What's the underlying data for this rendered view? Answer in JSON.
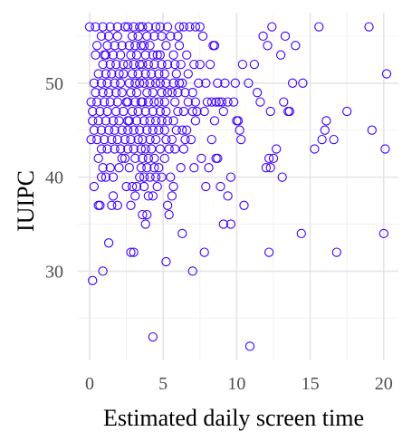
{
  "chart_data": {
    "type": "scatter",
    "xlabel": "Estimated daily screen time",
    "ylabel": "IUIPC",
    "xlim": [
      -0.8,
      21
    ],
    "ylim": [
      20.5,
      57.5
    ],
    "xticks": [
      0,
      5,
      10,
      15,
      20
    ],
    "yticks": [
      30,
      40,
      50
    ],
    "grid": true,
    "legend": "none",
    "point_color": "#3f00ff",
    "points": [
      [
        0.2,
        29
      ],
      [
        0.9,
        30
      ],
      [
        1.3,
        33
      ],
      [
        0.6,
        37
      ],
      [
        0.7,
        37
      ],
      [
        1.5,
        37
      ],
      [
        1.9,
        37
      ],
      [
        0.3,
        39
      ],
      [
        1.1,
        40
      ],
      [
        1.6,
        40
      ],
      [
        0.6,
        42
      ],
      [
        0.9,
        41
      ],
      [
        1.4,
        41
      ],
      [
        2.0,
        41
      ],
      [
        2.2,
        42
      ],
      [
        0.8,
        43
      ],
      [
        1.2,
        43
      ],
      [
        1.7,
        43
      ],
      [
        2.1,
        43
      ],
      [
        0.1,
        44
      ],
      [
        0.5,
        44
      ],
      [
        1.0,
        44
      ],
      [
        1.5,
        44
      ],
      [
        1.9,
        44
      ],
      [
        2.4,
        44
      ],
      [
        0.3,
        45
      ],
      [
        0.8,
        45
      ],
      [
        1.3,
        45
      ],
      [
        1.7,
        45
      ],
      [
        2.2,
        45
      ],
      [
        0.6,
        46
      ],
      [
        1.1,
        46
      ],
      [
        1.6,
        46
      ],
      [
        2.0,
        46
      ],
      [
        2.6,
        46
      ],
      [
        0.2,
        47
      ],
      [
        0.7,
        47
      ],
      [
        1.2,
        47
      ],
      [
        1.8,
        47
      ],
      [
        2.3,
        47
      ],
      [
        0.1,
        48
      ],
      [
        0.5,
        48
      ],
      [
        1.0,
        48
      ],
      [
        1.4,
        48
      ],
      [
        1.9,
        48
      ],
      [
        2.5,
        48
      ],
      [
        0.4,
        49
      ],
      [
        0.9,
        49
      ],
      [
        1.3,
        49
      ],
      [
        1.8,
        49
      ],
      [
        2.2,
        49
      ],
      [
        0.3,
        50
      ],
      [
        0.8,
        50
      ],
      [
        1.2,
        50
      ],
      [
        1.7,
        50
      ],
      [
        2.1,
        50
      ],
      [
        0.6,
        51
      ],
      [
        1.1,
        51
      ],
      [
        1.5,
        51
      ],
      [
        2.0,
        51
      ],
      [
        0.9,
        52
      ],
      [
        1.4,
        52
      ],
      [
        1.8,
        52
      ],
      [
        2.3,
        52
      ],
      [
        0.4,
        53
      ],
      [
        1.0,
        53
      ],
      [
        1.6,
        53
      ],
      [
        2.1,
        53
      ],
      [
        0.5,
        54
      ],
      [
        1.2,
        54
      ],
      [
        1.7,
        54
      ],
      [
        2.2,
        54
      ],
      [
        0.8,
        55
      ],
      [
        1.3,
        55
      ],
      [
        1.9,
        55
      ],
      [
        0.0,
        56
      ],
      [
        0.4,
        56
      ],
      [
        0.9,
        56
      ],
      [
        1.4,
        56
      ],
      [
        1.9,
        56
      ],
      [
        2.4,
        56
      ],
      [
        2.8,
        32
      ],
      [
        3.0,
        32
      ],
      [
        2.8,
        37
      ],
      [
        3.1,
        38
      ],
      [
        3.2,
        39
      ],
      [
        2.9,
        39
      ],
      [
        3.4,
        40
      ],
      [
        2.7,
        41
      ],
      [
        3.1,
        42
      ],
      [
        2.6,
        43
      ],
      [
        3.0,
        43
      ],
      [
        3.5,
        43
      ],
      [
        2.8,
        44
      ],
      [
        3.3,
        44
      ],
      [
        2.6,
        45
      ],
      [
        3.0,
        45
      ],
      [
        3.4,
        45
      ],
      [
        2.7,
        46
      ],
      [
        3.2,
        46
      ],
      [
        2.9,
        47
      ],
      [
        3.3,
        47
      ],
      [
        2.6,
        48
      ],
      [
        3.1,
        48
      ],
      [
        3.5,
        48
      ],
      [
        2.8,
        49
      ],
      [
        3.2,
        49
      ],
      [
        2.7,
        50
      ],
      [
        3.1,
        50
      ],
      [
        3.4,
        50
      ],
      [
        2.9,
        51
      ],
      [
        3.3,
        51
      ],
      [
        2.6,
        52
      ],
      [
        3.0,
        52
      ],
      [
        3.4,
        52
      ],
      [
        2.8,
        53
      ],
      [
        3.2,
        53
      ],
      [
        2.7,
        54
      ],
      [
        3.1,
        54
      ],
      [
        3.5,
        54
      ],
      [
        2.9,
        55
      ],
      [
        3.3,
        55
      ],
      [
        2.6,
        56
      ],
      [
        3.0,
        56
      ],
      [
        3.4,
        56
      ],
      [
        3.8,
        35
      ],
      [
        3.6,
        36
      ],
      [
        3.9,
        36
      ],
      [
        4.0,
        38
      ],
      [
        4.3,
        38
      ],
      [
        3.7,
        40
      ],
      [
        4.1,
        40
      ],
      [
        4.5,
        40
      ],
      [
        3.9,
        41
      ],
      [
        4.4,
        41
      ],
      [
        3.6,
        42
      ],
      [
        4.0,
        42
      ],
      [
        4.4,
        42
      ],
      [
        3.8,
        43
      ],
      [
        4.2,
        43
      ],
      [
        3.6,
        44
      ],
      [
        4.1,
        44
      ],
      [
        4.5,
        44
      ],
      [
        3.9,
        45
      ],
      [
        4.3,
        45
      ],
      [
        3.7,
        46
      ],
      [
        4.1,
        46
      ],
      [
        4.5,
        46
      ],
      [
        3.8,
        47
      ],
      [
        4.3,
        47
      ],
      [
        3.6,
        48
      ],
      [
        4.0,
        48
      ],
      [
        4.4,
        48
      ],
      [
        3.9,
        49
      ],
      [
        4.3,
        49
      ],
      [
        3.7,
        50
      ],
      [
        4.1,
        50
      ],
      [
        4.5,
        50
      ],
      [
        3.8,
        51
      ],
      [
        4.2,
        51
      ],
      [
        3.6,
        52
      ],
      [
        4.0,
        52
      ],
      [
        4.4,
        52
      ],
      [
        3.8,
        53
      ],
      [
        4.3,
        53
      ],
      [
        3.7,
        54
      ],
      [
        4.1,
        54
      ],
      [
        3.9,
        55
      ],
      [
        4.4,
        55
      ],
      [
        3.6,
        56
      ],
      [
        4.0,
        56
      ],
      [
        4.5,
        56
      ],
      [
        4.3,
        23
      ],
      [
        4.9,
        40
      ],
      [
        4.7,
        41
      ],
      [
        5.1,
        42
      ],
      [
        4.8,
        43
      ],
      [
        5.2,
        44
      ],
      [
        4.7,
        45
      ],
      [
        5.1,
        45
      ],
      [
        4.9,
        46
      ],
      [
        5.3,
        46
      ],
      [
        4.8,
        47
      ],
      [
        5.2,
        47
      ],
      [
        4.7,
        48
      ],
      [
        5.1,
        48
      ],
      [
        4.9,
        49
      ],
      [
        5.3,
        49
      ],
      [
        4.8,
        50
      ],
      [
        5.2,
        50
      ],
      [
        4.7,
        51
      ],
      [
        5.1,
        51
      ],
      [
        4.9,
        52
      ],
      [
        5.3,
        52
      ],
      [
        4.8,
        53
      ],
      [
        5.2,
        54
      ],
      [
        4.9,
        55
      ],
      [
        4.8,
        56
      ],
      [
        5.3,
        56
      ],
      [
        5.2,
        31
      ],
      [
        5.4,
        36
      ],
      [
        5.3,
        37
      ],
      [
        5.6,
        38
      ],
      [
        5.7,
        39
      ],
      [
        5.5,
        40
      ],
      [
        5.8,
        43
      ],
      [
        5.6,
        44
      ],
      [
        5.9,
        45
      ],
      [
        5.7,
        46
      ],
      [
        6.0,
        47
      ],
      [
        5.8,
        48
      ],
      [
        5.6,
        49
      ],
      [
        6.0,
        49
      ],
      [
        5.7,
        50
      ],
      [
        6.1,
        50
      ],
      [
        5.9,
        51
      ],
      [
        5.8,
        52
      ],
      [
        6.2,
        52
      ],
      [
        5.7,
        53
      ],
      [
        6.1,
        54
      ],
      [
        6.0,
        55
      ],
      [
        6.1,
        56
      ],
      [
        6.3,
        34
      ],
      [
        6.4,
        43
      ],
      [
        6.5,
        44
      ],
      [
        6.3,
        45
      ],
      [
        6.6,
        45
      ],
      [
        6.4,
        47
      ],
      [
        6.7,
        48
      ],
      [
        6.5,
        49
      ],
      [
        6.3,
        50
      ],
      [
        6.7,
        51
      ],
      [
        6.4,
        56
      ],
      [
        6.8,
        56
      ],
      [
        7.0,
        30
      ],
      [
        7.1,
        41
      ],
      [
        7.2,
        46
      ],
      [
        7.0,
        47
      ],
      [
        7.3,
        47
      ],
      [
        7.2,
        48
      ],
      [
        7.0,
        49
      ],
      [
        7.4,
        50
      ],
      [
        7.1,
        52
      ],
      [
        7.5,
        52
      ],
      [
        7.2,
        56
      ],
      [
        7.5,
        56
      ],
      [
        7.8,
        32
      ],
      [
        7.9,
        39
      ],
      [
        8.1,
        41
      ],
      [
        7.8,
        47
      ],
      [
        8.0,
        48
      ],
      [
        8.3,
        48
      ],
      [
        7.9,
        50
      ],
      [
        8.2,
        52
      ],
      [
        8.4,
        54
      ],
      [
        8.5,
        54
      ],
      [
        8.6,
        42
      ],
      [
        8.7,
        42
      ],
      [
        8.6,
        48
      ],
      [
        8.8,
        48
      ],
      [
        8.7,
        50
      ],
      [
        8.9,
        39
      ],
      [
        9.1,
        47
      ],
      [
        9.0,
        48
      ],
      [
        9.4,
        48
      ],
      [
        9.2,
        50
      ],
      [
        9.1,
        35
      ],
      [
        9.6,
        35
      ],
      [
        9.6,
        40
      ],
      [
        9.8,
        48
      ],
      [
        9.9,
        50
      ],
      [
        10.0,
        46
      ],
      [
        10.1,
        46
      ],
      [
        10.2,
        45
      ],
      [
        10.3,
        44
      ],
      [
        10.5,
        37
      ],
      [
        10.4,
        52
      ],
      [
        10.9,
        22
      ],
      [
        11.2,
        52
      ],
      [
        11.4,
        49
      ],
      [
        11.6,
        48
      ],
      [
        12.2,
        32
      ],
      [
        12.3,
        41
      ],
      [
        12.5,
        42
      ],
      [
        12.7,
        43
      ],
      [
        12.4,
        56
      ],
      [
        12.3,
        47
      ],
      [
        12.1,
        54
      ],
      [
        12.2,
        42
      ],
      [
        13.0,
        53
      ],
      [
        13.3,
        55
      ],
      [
        13.1,
        40
      ],
      [
        13.5,
        47
      ],
      [
        13.6,
        47
      ],
      [
        14.0,
        54
      ],
      [
        13.8,
        50
      ],
      [
        14.4,
        34
      ],
      [
        14.5,
        50
      ],
      [
        15.3,
        43
      ],
      [
        15.6,
        56
      ],
      [
        15.8,
        44
      ],
      [
        16.0,
        45
      ],
      [
        16.1,
        46
      ],
      [
        16.6,
        44
      ],
      [
        16.8,
        32
      ],
      [
        17.5,
        47
      ],
      [
        19.0,
        56
      ],
      [
        19.2,
        45
      ],
      [
        20.0,
        34
      ],
      [
        20.1,
        43
      ],
      [
        20.2,
        51
      ],
      [
        12.0,
        41
      ],
      [
        13.2,
        48
      ],
      [
        11.8,
        55
      ],
      [
        7.6,
        42
      ],
      [
        8.3,
        44
      ],
      [
        6.9,
        44
      ],
      [
        5.4,
        43
      ],
      [
        3.5,
        41
      ],
      [
        2.4,
        42
      ],
      [
        2.5,
        39
      ],
      [
        1.6,
        38
      ],
      [
        0.8,
        40
      ],
      [
        3.7,
        39
      ],
      [
        4.6,
        39
      ],
      [
        6.2,
        41
      ],
      [
        10.8,
        50
      ],
      [
        9.4,
        38
      ],
      [
        7.7,
        55
      ],
      [
        8.5,
        46
      ],
      [
        2.3,
        51
      ],
      [
        1.1,
        53
      ],
      [
        0.2,
        46
      ],
      [
        4.6,
        53
      ],
      [
        5.5,
        55
      ],
      [
        6.6,
        53
      ]
    ]
  }
}
